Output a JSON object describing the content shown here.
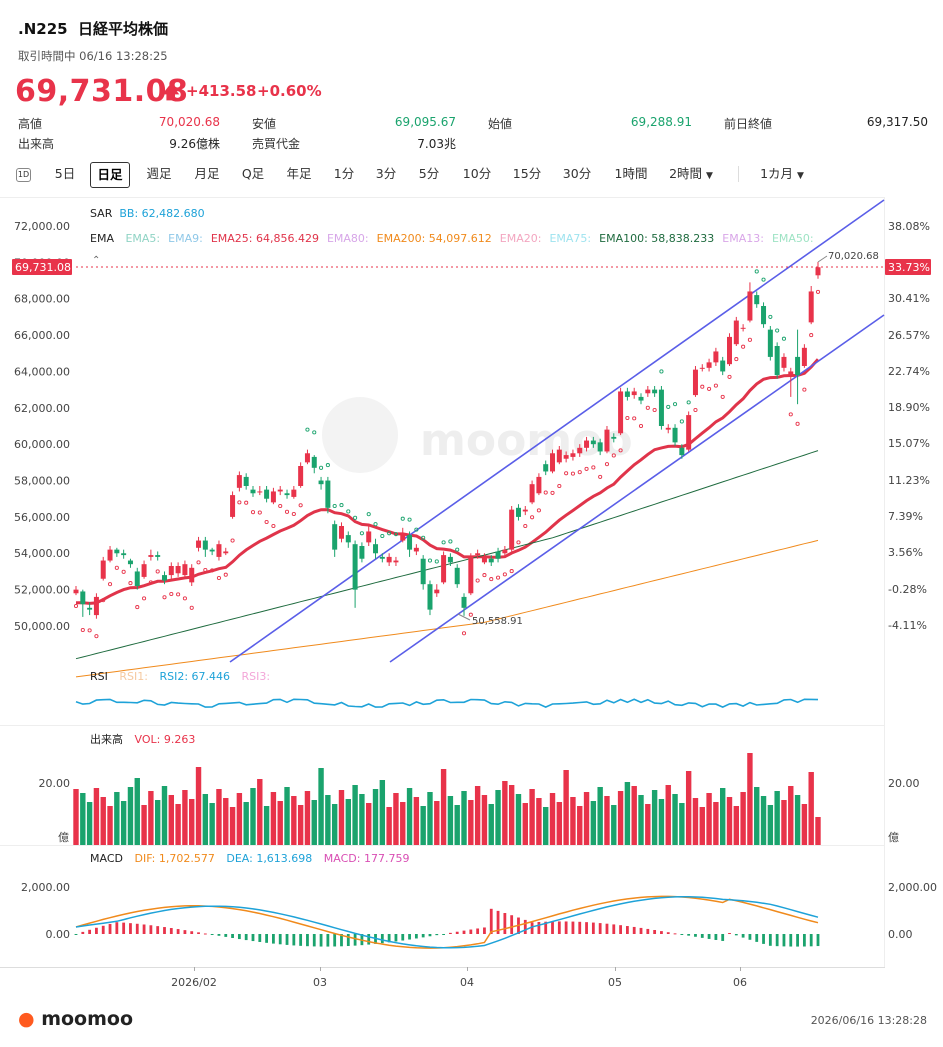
{
  "header": {
    "symbol": ".N225",
    "name": "日経平均株価",
    "status": "取引時間中 06/16 13:28:25",
    "price": "69,731.08",
    "change": "+413.58",
    "change_pct": "+0.60%"
  },
  "stats": [
    {
      "label": "高値",
      "value": "70,020.68",
      "color": "red"
    },
    {
      "label": "安値",
      "value": "69,095.67",
      "color": "grn"
    },
    {
      "label": "始値",
      "value": "69,288.91",
      "color": "grn"
    },
    {
      "label": "前日終値",
      "value": "69,317.50",
      "color": "blk"
    },
    {
      "label": "出来高",
      "value": "9.26億株",
      "color": "blk"
    },
    {
      "label": "売買代金",
      "value": "7.03兆",
      "color": "blk"
    }
  ],
  "toolbar": {
    "icon_label": "1D",
    "periods": [
      "5日",
      "日足",
      "週足",
      "月足",
      "Q足",
      "年足",
      "1分",
      "3分",
      "5分",
      "10分",
      "15分",
      "30分",
      "1時間",
      "2時間"
    ],
    "selected": "日足",
    "range": "1カ月"
  },
  "main_chart": {
    "sar_label": "SAR",
    "bb_label": "BB: 62,482.680",
    "ema_title": "EMA",
    "ema_items": [
      {
        "label": "EMA5:",
        "color": "#8fd3c4"
      },
      {
        "label": "EMA9:",
        "color": "#8fc8e8"
      },
      {
        "label": "EMA25: 64,856.429",
        "color": "#e0344a"
      },
      {
        "label": "EMA80:",
        "color": "#d7a6e8"
      },
      {
        "label": "EMA200: 54,097.612",
        "color": "#f08a1c"
      },
      {
        "label": "EMA20:",
        "color": "#f3a6c0"
      },
      {
        "label": "EMA75:",
        "color": "#9ee3ef"
      },
      {
        "label": "EMA100: 58,838.233",
        "color": "#1f6b3f"
      },
      {
        "label": "EMA13:",
        "color": "#d9a6e8"
      },
      {
        "label": "EMA50:",
        "color": "#9ee3c4"
      }
    ],
    "current_price_tag": "69,731.08",
    "current_pct_tag": "33.73%",
    "high_annotation": "70,020.68",
    "low_annotation": "50,558.91",
    "watermark": "moomoo",
    "y_ticks_left": [
      "72,000.00",
      "70,000.00",
      "68,000.00",
      "66,000.00",
      "64,000.00",
      "62,000.00",
      "60,000.00",
      "58,000.00",
      "56,000.00",
      "54,000.00",
      "52,000.00",
      "50,000.00"
    ],
    "y_ticks_right": [
      "38.08%",
      "30.41%",
      "26.57%",
      "22.74%",
      "18.90%",
      "15.07%",
      "11.23%",
      "7.39%",
      "3.56%",
      "-0.28%",
      "-4.11%"
    ]
  },
  "rsi": {
    "title": "RSI",
    "items": [
      {
        "label": "RSI1:",
        "color": "#f5c9a0"
      },
      {
        "label": "RSI2: 67.446",
        "color": "#1ea2d8"
      },
      {
        "label": "RSI3:",
        "color": "#f3a6d8"
      }
    ]
  },
  "volume": {
    "title": "出来高",
    "vol_label": "VOL: 9.263",
    "tick_left": "20.00",
    "unit_left": "億",
    "tick_right": "20.00",
    "unit_right": "億"
  },
  "macd": {
    "title": "MACD",
    "dif": "DIF: 1,702.577",
    "dea": "DEA: 1,613.698",
    "macd": "MACD: 177.759",
    "ticks_left": [
      "2,000.00",
      "0.00"
    ],
    "ticks_right": [
      "2,000.00",
      "0.00"
    ]
  },
  "x_axis": [
    "2026/02",
    "03",
    "04",
    "05",
    "06"
  ],
  "chart_data": {
    "type": "candlestick",
    "title": ".N225 日経平均株価",
    "ylim": [
      48000,
      73000
    ],
    "candles": [
      {
        "o": 51800,
        "c": 52000,
        "h": 52200,
        "l": 51700
      },
      {
        "o": 51900,
        "c": 51200,
        "h": 52000,
        "l": 50500
      },
      {
        "o": 51000,
        "c": 50900,
        "h": 51300,
        "l": 50600
      },
      {
        "o": 50600,
        "c": 51600,
        "h": 51800,
        "l": 50400
      },
      {
        "o": 52600,
        "c": 53600,
        "h": 53800,
        "l": 52500
      },
      {
        "o": 53600,
        "c": 54200,
        "h": 54400,
        "l": 53500
      },
      {
        "o": 54200,
        "c": 54000,
        "h": 54300,
        "l": 53800
      },
      {
        "o": 54000,
        "c": 53900,
        "h": 54200,
        "l": 53700
      },
      {
        "o": 53600,
        "c": 53400,
        "h": 53700,
        "l": 53200
      },
      {
        "o": 53000,
        "c": 52200,
        "h": 53200,
        "l": 52000
      },
      {
        "o": 52700,
        "c": 53400,
        "h": 53600,
        "l": 52600
      },
      {
        "o": 53800,
        "c": 53900,
        "h": 54200,
        "l": 53600
      },
      {
        "o": 53900,
        "c": 53800,
        "h": 54100,
        "l": 53600
      },
      {
        "o": 52800,
        "c": 52500,
        "h": 53000,
        "l": 52300
      },
      {
        "o": 52800,
        "c": 53300,
        "h": 53500,
        "l": 52600
      },
      {
        "o": 52900,
        "c": 53300,
        "h": 53500,
        "l": 52700
      },
      {
        "o": 52800,
        "c": 53400,
        "h": 53600,
        "l": 52600
      },
      {
        "o": 52400,
        "c": 53200,
        "h": 53400,
        "l": 52200
      },
      {
        "o": 54300,
        "c": 54700,
        "h": 54900,
        "l": 54100
      },
      {
        "o": 54700,
        "c": 54200,
        "h": 54900,
        "l": 53800
      },
      {
        "o": 54200,
        "c": 54100,
        "h": 54300,
        "l": 53900
      },
      {
        "o": 53800,
        "c": 54500,
        "h": 54700,
        "l": 53600
      },
      {
        "o": 54000,
        "c": 54100,
        "h": 54300,
        "l": 53900
      },
      {
        "o": 56000,
        "c": 57200,
        "h": 57400,
        "l": 55900
      },
      {
        "o": 57600,
        "c": 58300,
        "h": 58500,
        "l": 57400
      },
      {
        "o": 58200,
        "c": 57700,
        "h": 58400,
        "l": 57500
      },
      {
        "o": 57500,
        "c": 57300,
        "h": 57700,
        "l": 57100
      },
      {
        "o": 57400,
        "c": 57400,
        "h": 57700,
        "l": 57200
      },
      {
        "o": 57500,
        "c": 57000,
        "h": 57700,
        "l": 56800
      },
      {
        "o": 56800,
        "c": 57400,
        "h": 57600,
        "l": 56700
      },
      {
        "o": 57400,
        "c": 57500,
        "h": 57700,
        "l": 57200
      },
      {
        "o": 57300,
        "c": 57200,
        "h": 57500,
        "l": 57000
      },
      {
        "o": 57100,
        "c": 57500,
        "h": 57700,
        "l": 57000
      },
      {
        "o": 57700,
        "c": 58800,
        "h": 59000,
        "l": 57600
      },
      {
        "o": 59000,
        "c": 59500,
        "h": 59700,
        "l": 58900
      },
      {
        "o": 59300,
        "c": 58700,
        "h": 59400,
        "l": 58400
      },
      {
        "o": 58000,
        "c": 57800,
        "h": 58200,
        "l": 57500
      },
      {
        "o": 58000,
        "c": 56500,
        "h": 58200,
        "l": 56200
      },
      {
        "o": 55600,
        "c": 54200,
        "h": 55800,
        "l": 53800
      },
      {
        "o": 54800,
        "c": 55500,
        "h": 55700,
        "l": 54600
      },
      {
        "o": 55000,
        "c": 54600,
        "h": 55200,
        "l": 54300
      },
      {
        "o": 54500,
        "c": 52000,
        "h": 54700,
        "l": 51000
      },
      {
        "o": 54400,
        "c": 53700,
        "h": 54600,
        "l": 53500
      },
      {
        "o": 54600,
        "c": 55200,
        "h": 55500,
        "l": 54400
      },
      {
        "o": 54500,
        "c": 54000,
        "h": 54800,
        "l": 53700
      },
      {
        "o": 53800,
        "c": 53700,
        "h": 54000,
        "l": 53500
      },
      {
        "o": 53500,
        "c": 53800,
        "h": 54000,
        "l": 53300
      },
      {
        "o": 53500,
        "c": 53600,
        "h": 53800,
        "l": 53300
      },
      {
        "o": 54700,
        "c": 55100,
        "h": 55400,
        "l": 54600
      },
      {
        "o": 55000,
        "c": 54200,
        "h": 55200,
        "l": 53800
      },
      {
        "o": 54100,
        "c": 54300,
        "h": 54500,
        "l": 53900
      },
      {
        "o": 53700,
        "c": 52300,
        "h": 53900,
        "l": 52000
      },
      {
        "o": 52300,
        "c": 50900,
        "h": 52500,
        "l": 50600
      },
      {
        "o": 51800,
        "c": 52000,
        "h": 52300,
        "l": 51600
      },
      {
        "o": 52400,
        "c": 53900,
        "h": 54100,
        "l": 52300
      },
      {
        "o": 53800,
        "c": 53500,
        "h": 54000,
        "l": 53300
      },
      {
        "o": 53200,
        "c": 52300,
        "h": 53400,
        "l": 52100
      },
      {
        "o": 51600,
        "c": 51000,
        "h": 51800,
        "l": 50559
      },
      {
        "o": 51800,
        "c": 53800,
        "h": 54000,
        "l": 51700
      },
      {
        "o": 53900,
        "c": 54000,
        "h": 54200,
        "l": 53700
      },
      {
        "o": 53500,
        "c": 53800,
        "h": 54000,
        "l": 53400
      },
      {
        "o": 53700,
        "c": 53500,
        "h": 53900,
        "l": 53300
      },
      {
        "o": 54100,
        "c": 53700,
        "h": 54300,
        "l": 53500
      },
      {
        "o": 54000,
        "c": 54200,
        "h": 54400,
        "l": 53800
      },
      {
        "o": 54200,
        "c": 56400,
        "h": 56600,
        "l": 54100
      },
      {
        "o": 56500,
        "c": 56000,
        "h": 56700,
        "l": 55800
      },
      {
        "o": 56300,
        "c": 56400,
        "h": 56600,
        "l": 56100
      },
      {
        "o": 56800,
        "c": 57800,
        "h": 58000,
        "l": 56700
      },
      {
        "o": 57300,
        "c": 58200,
        "h": 58400,
        "l": 57200
      },
      {
        "o": 58900,
        "c": 58500,
        "h": 59100,
        "l": 58300
      },
      {
        "o": 58500,
        "c": 59500,
        "h": 59700,
        "l": 58400
      },
      {
        "o": 59000,
        "c": 59700,
        "h": 59900,
        "l": 58900
      },
      {
        "o": 59200,
        "c": 59400,
        "h": 59600,
        "l": 59000
      },
      {
        "o": 59300,
        "c": 59500,
        "h": 59700,
        "l": 59100
      },
      {
        "o": 59500,
        "c": 59800,
        "h": 60000,
        "l": 59300
      },
      {
        "o": 59800,
        "c": 60200,
        "h": 60400,
        "l": 59600
      },
      {
        "o": 60200,
        "c": 60000,
        "h": 60400,
        "l": 59800
      },
      {
        "o": 60100,
        "c": 59600,
        "h": 60300,
        "l": 59400
      },
      {
        "o": 59600,
        "c": 60800,
        "h": 61000,
        "l": 59500
      },
      {
        "o": 60400,
        "c": 60300,
        "h": 60600,
        "l": 60100
      },
      {
        "o": 60600,
        "c": 62900,
        "h": 63100,
        "l": 60500
      },
      {
        "o": 62900,
        "c": 62600,
        "h": 63100,
        "l": 62400
      },
      {
        "o": 62700,
        "c": 62900,
        "h": 63100,
        "l": 62500
      },
      {
        "o": 62600,
        "c": 62400,
        "h": 62800,
        "l": 62200
      },
      {
        "o": 62800,
        "c": 63000,
        "h": 63200,
        "l": 62600
      },
      {
        "o": 63000,
        "c": 62800,
        "h": 63200,
        "l": 62600
      },
      {
        "o": 63000,
        "c": 61000,
        "h": 63200,
        "l": 60800
      },
      {
        "o": 60800,
        "c": 60900,
        "h": 61100,
        "l": 60600
      },
      {
        "o": 60900,
        "c": 60100,
        "h": 61100,
        "l": 59900
      },
      {
        "o": 59800,
        "c": 59400,
        "h": 60000,
        "l": 59200
      },
      {
        "o": 59700,
        "c": 61600,
        "h": 61800,
        "l": 59600
      },
      {
        "o": 62700,
        "c": 64100,
        "h": 64300,
        "l": 62600
      },
      {
        "o": 64200,
        "c": 64200,
        "h": 64400,
        "l": 64000
      },
      {
        "o": 64200,
        "c": 64500,
        "h": 64700,
        "l": 64000
      },
      {
        "o": 64500,
        "c": 65100,
        "h": 65300,
        "l": 64300
      },
      {
        "o": 64600,
        "c": 64000,
        "h": 64800,
        "l": 63800
      },
      {
        "o": 64400,
        "c": 65900,
        "h": 66100,
        "l": 64300
      },
      {
        "o": 65500,
        "c": 66800,
        "h": 67000,
        "l": 65400
      },
      {
        "o": 66400,
        "c": 66400,
        "h": 66600,
        "l": 66200
      },
      {
        "o": 66800,
        "c": 68400,
        "h": 68900,
        "l": 66700
      },
      {
        "o": 68200,
        "c": 67700,
        "h": 68400,
        "l": 67500
      },
      {
        "o": 67600,
        "c": 66600,
        "h": 67800,
        "l": 66400
      },
      {
        "o": 66300,
        "c": 64800,
        "h": 66500,
        "l": 64600
      },
      {
        "o": 65400,
        "c": 63800,
        "h": 65600,
        "l": 63600
      },
      {
        "o": 64200,
        "c": 64800,
        "h": 65000,
        "l": 64000
      },
      {
        "o": 63800,
        "c": 64000,
        "h": 64200,
        "l": 62600
      },
      {
        "o": 64800,
        "c": 63800,
        "h": 66300,
        "l": 62200
      },
      {
        "o": 64300,
        "c": 65300,
        "h": 65500,
        "l": 64200
      },
      {
        "o": 66700,
        "c": 68400,
        "h": 68700,
        "l": 66600
      },
      {
        "o": 69289,
        "c": 69731,
        "h": 70021,
        "l": 69096
      }
    ]
  }
}
